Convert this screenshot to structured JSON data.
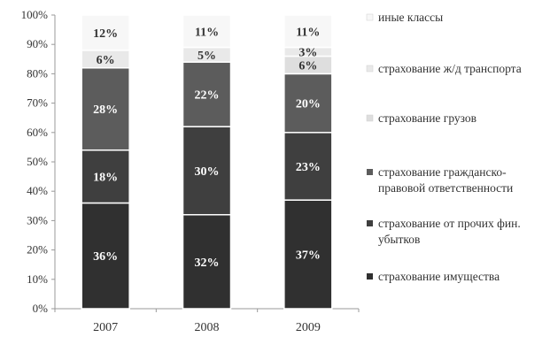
{
  "chart_data": {
    "type": "bar",
    "stacked": true,
    "percent": true,
    "categories": [
      "2007",
      "2008",
      "2009"
    ],
    "series": [
      {
        "name": "страхование имущества",
        "values": [
          36,
          32,
          37
        ],
        "color": "#303030"
      },
      {
        "name": "страхование от прочих фин. убытков",
        "values": [
          18,
          30,
          23
        ],
        "color": "#3f3f3f"
      },
      {
        "name": "страхование гражданско-правовой ответственности",
        "values": [
          28,
          22,
          20
        ],
        "color": "#5c5c5c"
      },
      {
        "name": "страхование грузов",
        "values": [
          0,
          0,
          6
        ],
        "color": "#dedede"
      },
      {
        "name": "страхование ж/д транспорта",
        "values": [
          6,
          5,
          3
        ],
        "color": "#e9e9e9"
      },
      {
        "name": "иные классы",
        "values": [
          12,
          11,
          11
        ],
        "color": "#f7f7f7"
      }
    ],
    "legend_lines": [
      [
        "иные классы"
      ],
      [
        "страхование ж/д транспорта"
      ],
      [
        "страхование грузов"
      ],
      [
        "страхование гражданско-",
        "правовой ответственности"
      ],
      [
        "страхование от прочих фин.",
        "убытков"
      ],
      [
        "страхование имущества"
      ]
    ],
    "y_ticks": [
      "0%",
      "10%",
      "20%",
      "30%",
      "40%",
      "50%",
      "60%",
      "70%",
      "80%",
      "90%",
      "100%"
    ],
    "ylim": [
      0,
      100
    ],
    "legend_position": "right",
    "grid": false
  }
}
